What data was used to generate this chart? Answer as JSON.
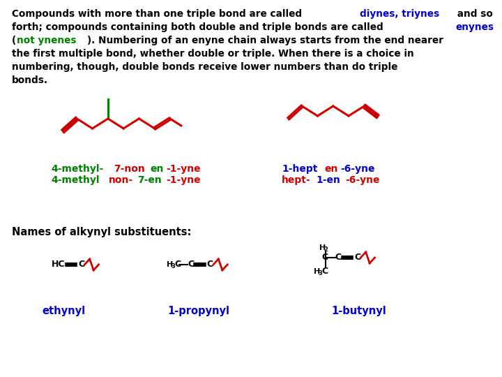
{
  "background_color": "#ffffff",
  "text_block": {
    "text_parts": [
      {
        "text": "Compounds with more than one triple bond are called ",
        "color": "#000000",
        "bold": true
      },
      {
        "text": "diynes, triynes",
        "color": "#0000cc",
        "bold": true
      },
      {
        "text": " and so\nforth; compounds containing both double and triple bonds are called ",
        "color": "#000000",
        "bold": true
      },
      {
        "text": "enynes\n",
        "color": "#0000cc",
        "bold": true
      },
      {
        "text": "(",
        "color": "#000000",
        "bold": true
      },
      {
        "text": "not ynenes",
        "color": "#008000",
        "bold": true
      },
      {
        "text": "). Numbering of an enyne chain always starts from the end nearer\nthe first multiple bond, whether double or triple. When there is a choice in\nnumbering, though, double bonds receive lower numbers than do triple\nbonds.",
        "color": "#000000",
        "bold": true
      }
    ]
  },
  "mol1_label_lines": [
    [
      {
        "text": "4-methyl-",
        "color": "#008000"
      },
      {
        "text": "7-non",
        "color": "#cc0000"
      },
      {
        "text": "en",
        "color": "#008000"
      },
      {
        "text": "-1-yne",
        "color": "#cc0000"
      }
    ],
    [
      {
        "text": "4-methyl",
        "color": "#008000"
      },
      {
        "text": "non-",
        "color": "#cc0000"
      },
      {
        "text": "7-en",
        "color": "#008000"
      },
      {
        "text": "-1-yne",
        "color": "#cc0000"
      }
    ]
  ],
  "mol2_label_lines": [
    [
      {
        "text": "1-hept",
        "color": "#0000cc"
      },
      {
        "text": "en",
        "color": "#cc0000"
      },
      {
        "text": "-6-yne",
        "color": "#0000cc"
      }
    ],
    [
      {
        "text": "hept-",
        "color": "#cc0000"
      },
      {
        "text": "1-en",
        "color": "#0000cc"
      },
      {
        "text": "-6-yne",
        "color": "#cc0000"
      }
    ]
  ],
  "substituents_title": "Names of alkynyl substituents:",
  "sub_labels": [
    {
      "text": "ethynyl",
      "color": "#0000cc"
    },
    {
      "text": "1-propynyl",
      "color": "#0000cc"
    },
    {
      "text": "1-butynyl",
      "color": "#0000cc"
    }
  ]
}
